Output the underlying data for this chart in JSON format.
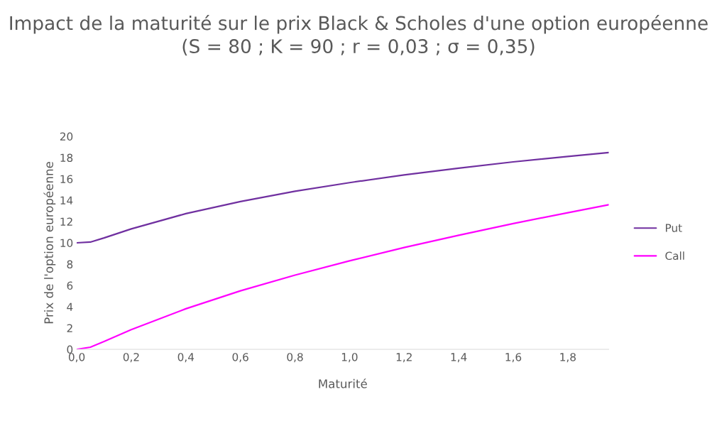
{
  "chart_data": {
    "type": "line",
    "title": "Impact de la maturité sur le prix Black & Scholes d'une option européenne\n(S = 80 ; K = 90 ; r = 0,03 ; σ = 0,35)",
    "xlabel": "Maturité",
    "ylabel": "Prix de l'option européenne",
    "x": [
      0,
      0.05,
      0.1,
      0.2,
      0.4,
      0.6,
      0.8,
      1.0,
      1.2,
      1.4,
      1.6,
      1.8,
      1.95
    ],
    "series": [
      {
        "name": "Put",
        "color": "#7030a0",
        "values": [
          10.0,
          10.07,
          10.46,
          11.31,
          12.74,
          13.88,
          14.84,
          15.65,
          16.38,
          17.01,
          17.6,
          18.11,
          18.47
        ]
      },
      {
        "name": "Call",
        "color": "#ff00ff",
        "values": [
          0.0,
          0.2,
          0.73,
          1.85,
          3.81,
          5.49,
          6.97,
          8.31,
          9.56,
          10.71,
          11.81,
          12.83,
          13.58
        ]
      }
    ],
    "xlim": [
      0,
      1.95
    ],
    "xticks": [
      {
        "value": 0,
        "label": "0,0"
      },
      {
        "value": 0.2,
        "label": "0,2"
      },
      {
        "value": 0.4,
        "label": "0,4"
      },
      {
        "value": 0.6,
        "label": "0,6"
      },
      {
        "value": 0.8,
        "label": "0,8"
      },
      {
        "value": 1.0,
        "label": "1,0"
      },
      {
        "value": 1.2,
        "label": "1,2"
      },
      {
        "value": 1.4,
        "label": "1,4"
      },
      {
        "value": 1.6,
        "label": "1,6"
      },
      {
        "value": 1.8,
        "label": "1,8"
      }
    ],
    "ylim": [
      0,
      20
    ],
    "yticks": [
      0,
      2,
      4,
      6,
      8,
      10,
      12,
      14,
      16,
      18,
      20
    ],
    "grid": false,
    "legend": "right"
  }
}
